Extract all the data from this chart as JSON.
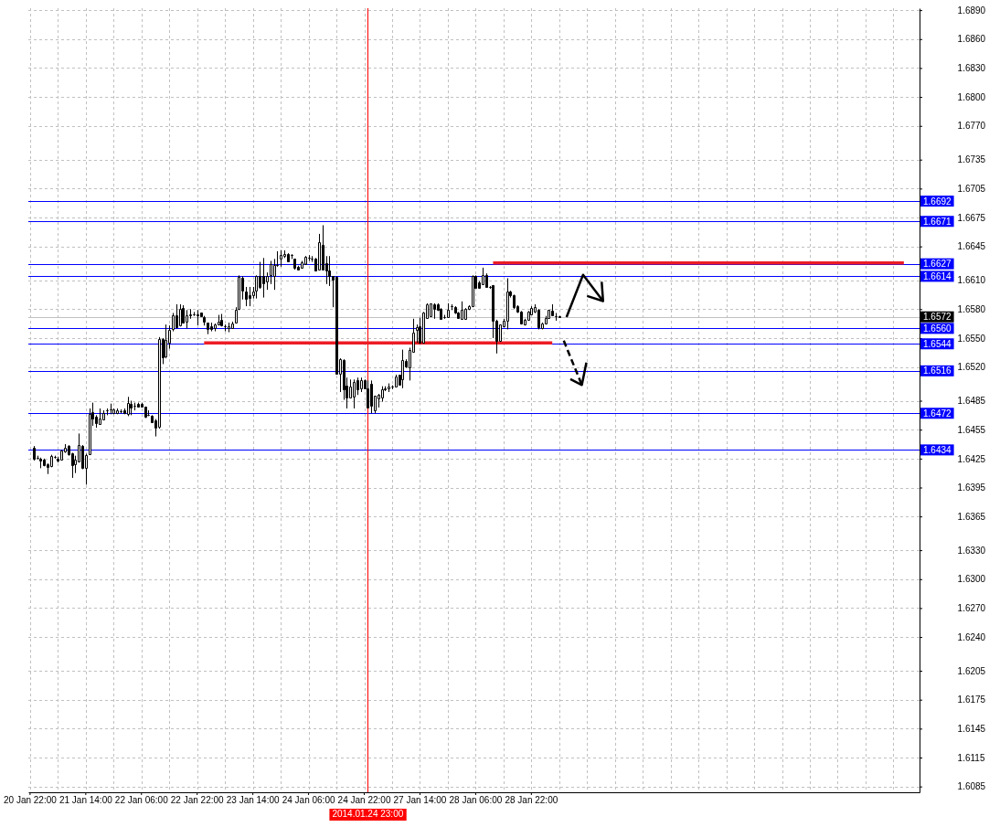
{
  "chart_data": {
    "type": "candlestick",
    "categories": [
      "20 Jan 22:00",
      null,
      null,
      null,
      null,
      null,
      null,
      null,
      null,
      null,
      null,
      null,
      null,
      null,
      null,
      null,
      "21 Jan 14:00",
      null,
      null,
      null,
      null,
      null,
      null,
      null,
      null,
      null,
      null,
      null,
      null,
      null,
      null,
      null,
      "22 Jan 06:00",
      null,
      null,
      null,
      null,
      null,
      null,
      null,
      null,
      null,
      null,
      null,
      null,
      null,
      null,
      null,
      "22 Jan 22:00",
      null,
      null,
      null,
      null,
      null,
      null,
      null,
      null,
      null,
      null,
      null,
      null,
      null,
      null,
      null,
      "23 Jan 14:00",
      null,
      null,
      null,
      null,
      null,
      null,
      null,
      null,
      null,
      null,
      null,
      null,
      null,
      null,
      null,
      "24 Jan 06:00",
      null,
      null,
      null,
      null,
      null,
      null,
      null,
      null,
      null,
      null,
      null,
      null,
      null,
      null,
      null,
      "24 Jan 22:00",
      "2014.01.24 23:00",
      null,
      null,
      null,
      null,
      null,
      null,
      null,
      null,
      null,
      null,
      null,
      null,
      null,
      null,
      "27 Jan 14:00",
      null,
      null,
      null,
      null,
      null,
      null,
      null,
      null,
      null,
      null,
      null,
      null,
      null,
      null,
      null,
      "28 Jan 06:00",
      null,
      null,
      null,
      null,
      null,
      null,
      null,
      null,
      null,
      null,
      null,
      null,
      null,
      null,
      null,
      "28 Jan 22:00",
      null,
      null,
      null,
      null,
      null,
      null,
      null,
      null,
      null,
      null,
      null,
      null,
      null,
      null,
      null,
      null,
      null,
      null,
      null,
      null,
      null,
      null,
      null,
      null,
      null,
      null,
      null,
      null,
      null,
      null,
      null,
      null,
      null,
      null,
      null,
      null,
      null,
      null,
      null,
      null,
      null,
      null,
      null,
      null,
      null,
      null,
      null,
      null,
      null,
      null,
      null,
      null,
      null,
      null,
      null,
      null,
      null,
      null,
      null,
      null,
      null,
      null,
      null,
      null,
      null,
      null,
      null,
      null,
      null,
      null,
      null,
      null,
      null,
      null,
      null,
      null,
      null,
      null,
      null,
      null,
      null,
      null,
      null,
      null,
      null,
      null,
      null,
      null,
      null,
      null,
      null,
      null,
      null,
      null,
      null,
      null,
      null,
      null,
      null,
      null,
      null,
      null,
      null,
      null,
      null,
      null,
      null,
      null,
      null,
      null,
      null
    ],
    "ohlc": [
      null,
      [
        1.6436,
        1.6438,
        1.6423,
        1.6425
      ],
      [
        1.6426,
        1.6428,
        1.6424,
        1.6426
      ],
      [
        1.6425,
        1.6426,
        1.6415,
        1.6423
      ],
      [
        1.6424,
        1.6425,
        1.6417,
        1.6418
      ],
      [
        1.6419,
        1.642,
        1.6409,
        1.6416
      ],
      [
        1.6417,
        1.6429,
        1.6416,
        1.6428
      ],
      [
        1.6427,
        1.6428,
        1.6425,
        1.6427
      ],
      [
        1.6425,
        1.6427,
        1.6421,
        1.6423
      ],
      [
        1.6424,
        1.6434,
        1.6423,
        1.6433
      ],
      [
        1.6432,
        1.644,
        1.6431,
        1.6436
      ],
      [
        1.6438,
        1.6439,
        1.6428,
        1.643
      ],
      [
        1.6431,
        1.6431,
        1.6405,
        1.6418
      ],
      [
        1.6419,
        1.6428,
        1.641,
        1.6424
      ],
      [
        1.6422,
        1.6451,
        1.6421,
        1.6439
      ],
      [
        1.6438,
        1.6439,
        1.6414,
        1.6415
      ],
      [
        1.6415,
        1.643,
        1.6398,
        1.6429
      ],
      [
        1.643,
        1.6477,
        1.6429,
        1.6471
      ],
      [
        1.6473,
        1.6483,
        1.6459,
        1.6467
      ],
      [
        1.6468,
        1.647,
        1.6457,
        1.6462
      ],
      [
        1.6461,
        1.6477,
        1.646,
        1.6467
      ],
      [
        1.6466,
        1.6475,
        1.6465,
        1.6472
      ],
      [
        1.6475,
        1.6477,
        1.647,
        1.6475
      ],
      [
        1.6476,
        1.6482,
        1.6471,
        1.6476
      ],
      [
        1.6472,
        1.6477,
        1.6471,
        1.6476
      ],
      [
        1.6472,
        1.6477,
        1.6471,
        1.6475
      ],
      [
        1.6474,
        1.6476,
        1.6472,
        1.6474
      ],
      [
        1.6475,
        1.6477,
        1.6471,
        1.6472
      ],
      [
        1.6471,
        1.6489,
        1.6469,
        1.6483
      ],
      [
        1.6482,
        1.6485,
        1.647,
        1.6478
      ],
      [
        1.648,
        1.6483,
        1.6475,
        1.648
      ],
      [
        1.6482,
        1.6483,
        1.6478,
        1.6479
      ],
      [
        1.6482,
        1.6483,
        1.6478,
        1.6479
      ],
      [
        1.6479,
        1.6479,
        1.6467,
        1.6468
      ],
      [
        1.647,
        1.6475,
        1.6469,
        1.647
      ],
      [
        1.6469,
        1.647,
        1.6462,
        1.6463
      ],
      [
        1.6465,
        1.6466,
        1.6448,
        1.6457
      ],
      [
        1.6458,
        1.6551,
        1.6456,
        1.6549
      ],
      [
        1.6549,
        1.655,
        1.6523,
        1.653
      ],
      [
        1.6531,
        1.6564,
        1.6529,
        1.6548
      ],
      [
        1.6545,
        1.6563,
        1.6539,
        1.6558
      ],
      [
        1.6559,
        1.6576,
        1.6557,
        1.6574
      ],
      [
        1.6574,
        1.6585,
        1.656,
        1.6561
      ],
      [
        1.6563,
        1.6585,
        1.6562,
        1.658
      ],
      [
        1.6581,
        1.6584,
        1.6565,
        1.6566
      ],
      [
        1.6567,
        1.6579,
        1.656,
        1.6574
      ],
      [
        1.6574,
        1.658,
        1.657,
        1.6575
      ],
      [
        1.6575,
        1.6577,
        1.6573,
        1.6575
      ],
      [
        1.6575,
        1.6579,
        1.6563,
        1.6574
      ],
      [
        1.6576,
        1.6576,
        1.6572,
        1.6573
      ],
      [
        1.6572,
        1.6573,
        1.6563,
        1.6567
      ],
      [
        1.6566,
        1.6566,
        1.6554,
        1.6559
      ],
      [
        1.6562,
        1.6566,
        1.6557,
        1.6559
      ],
      [
        1.656,
        1.6565,
        1.6557,
        1.6564
      ],
      [
        1.6564,
        1.6574,
        1.6563,
        1.6567
      ],
      [
        1.6569,
        1.6575,
        1.6562,
        1.6563
      ],
      [
        1.6562,
        1.6564,
        1.6557,
        1.6562
      ],
      [
        1.656,
        1.6566,
        1.6556,
        1.6562
      ],
      [
        1.656,
        1.6567,
        1.656,
        1.6565
      ],
      [
        1.6566,
        1.6582,
        1.6565,
        1.6579
      ],
      [
        1.658,
        1.6615,
        1.6579,
        1.6613
      ],
      [
        1.6612,
        1.6614,
        1.659,
        1.6599
      ],
      [
        1.6598,
        1.6603,
        1.6583,
        1.6591
      ],
      [
        1.6594,
        1.6603,
        1.6583,
        1.6592
      ],
      [
        1.6594,
        1.6603,
        1.6591,
        1.6598
      ],
      [
        1.6599,
        1.6615,
        1.6591,
        1.6614
      ],
      [
        1.6614,
        1.6629,
        1.6601,
        1.6603
      ],
      [
        1.6614,
        1.6633,
        1.6592,
        1.6607
      ],
      [
        1.6609,
        1.6618,
        1.66,
        1.6614
      ],
      [
        1.6615,
        1.663,
        1.6606,
        1.6627
      ],
      [
        1.6614,
        1.6632,
        1.66,
        1.6626
      ],
      [
        1.6626,
        1.664,
        1.6624,
        1.6626
      ],
      [
        1.6632,
        1.6641,
        1.6624,
        1.6636
      ],
      [
        1.6635,
        1.6641,
        1.6633,
        1.6637
      ],
      [
        1.6637,
        1.6638,
        1.6629,
        1.663
      ],
      [
        1.6636,
        1.6637,
        1.6632,
        1.6636
      ],
      [
        1.6632,
        1.6632,
        1.6621,
        1.6623
      ],
      [
        1.6624,
        1.6625,
        1.6621,
        1.6621
      ],
      [
        1.6623,
        1.663,
        1.6622,
        1.6629
      ],
      [
        1.6627,
        1.6635,
        1.6627,
        1.6634
      ],
      [
        1.6633,
        1.6636,
        1.663,
        1.6633
      ],
      [
        1.6632,
        1.6635,
        1.6629,
        1.6632
      ],
      [
        1.6632,
        1.6633,
        1.6619,
        1.662
      ],
      [
        1.6621,
        1.6658,
        1.6621,
        1.6649
      ],
      [
        1.6647,
        1.6667,
        1.6621,
        1.6621
      ],
      [
        1.6628,
        1.6635,
        1.6606,
        1.662
      ],
      [
        1.662,
        1.6635,
        1.6604,
        1.6614
      ],
      [
        1.6614,
        1.6614,
        1.6582,
        1.6611
      ],
      [
        1.6613,
        1.6614,
        1.6512,
        1.6513
      ],
      [
        1.6513,
        1.6529,
        1.6494,
        1.6528
      ],
      [
        1.6527,
        1.6528,
        1.6486,
        1.6497
      ],
      [
        1.6501,
        1.6509,
        1.6477,
        1.6488
      ],
      [
        1.6488,
        1.6507,
        1.6488,
        1.65
      ],
      [
        1.6489,
        1.6507,
        1.6477,
        1.6504
      ],
      [
        1.6506,
        1.6509,
        1.6491,
        1.6497
      ],
      [
        1.6498,
        1.6509,
        1.6494,
        1.6506
      ],
      [
        1.6506,
        1.6507,
        1.6497,
        1.6498
      ],
      [
        1.6498,
        1.6506,
        1.6477,
        1.6478
      ],
      [
        1.6503,
        1.6506,
        1.6472,
        1.648
      ],
      [
        1.6475,
        1.649,
        1.6472,
        1.649
      ],
      [
        1.6487,
        1.6492,
        1.6478,
        1.6491
      ],
      [
        1.6488,
        1.65,
        1.6484,
        1.6497
      ],
      [
        1.6497,
        1.65,
        1.6495,
        1.6498
      ],
      [
        1.6498,
        1.6503,
        1.6494,
        1.65
      ],
      [
        1.65,
        1.6501,
        1.6497,
        1.65
      ],
      [
        1.65,
        1.6512,
        1.6499,
        1.651
      ],
      [
        1.6512,
        1.6512,
        1.6501,
        1.6502
      ],
      [
        1.6507,
        1.6538,
        1.6498,
        1.6527
      ],
      [
        1.6526,
        1.6528,
        1.6519,
        1.6521
      ],
      [
        1.652,
        1.654,
        1.6506,
        1.6538
      ],
      [
        1.6536,
        1.657,
        1.6535,
        1.6556
      ],
      [
        1.6558,
        1.6564,
        1.6545,
        1.6561
      ],
      [
        1.6562,
        1.6571,
        1.6545,
        1.6545
      ],
      [
        1.6545,
        1.6577,
        1.6545,
        1.6576
      ],
      [
        1.6571,
        1.6586,
        1.657,
        1.6585
      ],
      [
        1.6573,
        1.6586,
        1.6572,
        1.6586
      ],
      [
        1.6585,
        1.6586,
        1.657,
        1.658
      ],
      [
        1.6585,
        1.6586,
        1.6578,
        1.6579
      ],
      [
        1.658,
        1.6581,
        1.6569,
        1.657
      ],
      [
        1.6572,
        1.6574,
        1.657,
        1.6572
      ],
      [
        1.6572,
        1.6586,
        1.6571,
        1.6579
      ],
      [
        1.6583,
        1.6585,
        1.6579,
        1.6583
      ],
      [
        1.6582,
        1.6583,
        1.6575,
        1.6576
      ],
      [
        1.6576,
        1.6577,
        1.657,
        1.6571
      ],
      [
        1.657,
        1.6588,
        1.6569,
        1.6579
      ],
      [
        1.657,
        1.6581,
        1.6569,
        1.658
      ],
      [
        1.658,
        1.6584,
        1.6579,
        1.6583
      ],
      [
        1.6583,
        1.6615,
        1.6582,
        1.6614
      ],
      [
        1.6614,
        1.6615,
        1.6601,
        1.6602
      ],
      [
        1.6608,
        1.6609,
        1.6601,
        1.6602
      ],
      [
        1.6606,
        1.6623,
        1.6605,
        1.6615
      ],
      [
        1.6615,
        1.6617,
        1.6602,
        1.6603
      ],
      [
        1.6603,
        1.6604,
        1.6601,
        1.6603
      ],
      [
        1.6605,
        1.6605,
        1.655,
        1.6568
      ],
      [
        1.6568,
        1.6569,
        1.6534,
        1.6547
      ],
      [
        1.6547,
        1.6564,
        1.6546,
        1.6564
      ],
      [
        1.6562,
        1.657,
        1.6561,
        1.6568
      ],
      [
        1.6568,
        1.6612,
        1.6559,
        1.6598
      ],
      [
        1.6598,
        1.6599,
        1.6592,
        1.6594
      ],
      [
        1.6594,
        1.6595,
        1.658,
        1.6582
      ],
      [
        1.6583,
        1.6584,
        1.6576,
        1.6577
      ],
      [
        1.6577,
        1.6578,
        1.6564,
        1.6565
      ],
      [
        1.6564,
        1.657,
        1.6563,
        1.6569
      ],
      [
        1.6569,
        1.6578,
        1.6568,
        1.6577
      ],
      [
        1.6575,
        1.6583,
        1.6574,
        1.6581
      ],
      [
        1.6577,
        1.6585,
        1.6576,
        1.6582
      ],
      [
        1.6579,
        1.658,
        1.6559,
        1.6561
      ],
      [
        1.656,
        1.6566,
        1.6559,
        1.6565
      ],
      [
        1.6565,
        1.6573,
        1.6564,
        1.6571
      ],
      [
        1.6571,
        1.6579,
        1.657,
        1.6579
      ],
      [
        1.6578,
        1.6585,
        1.6573,
        1.6574
      ],
      [
        1.6573,
        1.6576,
        1.6568,
        1.6573
      ],
      [
        1.6573,
        1.6573,
        1.6571,
        1.6572
      ],
      null,
      null,
      null,
      null,
      null,
      null,
      null,
      null,
      null,
      null,
      null,
      null,
      null,
      null,
      null,
      null,
      null,
      null,
      null,
      null,
      null,
      null,
      null,
      null,
      null,
      null,
      null,
      null,
      null,
      null,
      null,
      null,
      null,
      null,
      null,
      null,
      null,
      null,
      null,
      null,
      null,
      null,
      null,
      null,
      null,
      null,
      null,
      null,
      null,
      null,
      null,
      null,
      null,
      null,
      null,
      null,
      null,
      null,
      null,
      null,
      null,
      null,
      null,
      null,
      null,
      null,
      null,
      null,
      null,
      null,
      null,
      null,
      null,
      null,
      null,
      null,
      null,
      null,
      null,
      null,
      null,
      null,
      null,
      null,
      null,
      null,
      null,
      null,
      null,
      null,
      null,
      null,
      null,
      null,
      null,
      null,
      null,
      null,
      null,
      null,
      null,
      null,
      null
    ],
    "series": [
      {
        "type": "line",
        "color": "#ed1c24",
        "values": [
          null,
          null,
          null,
          null,
          null,
          null,
          null,
          null,
          null,
          null,
          null,
          null,
          null,
          null,
          null,
          null,
          null,
          null,
          null,
          null,
          null,
          null,
          null,
          null,
          null,
          null,
          null,
          null,
          null,
          null,
          null,
          null,
          null,
          null,
          null,
          null,
          null,
          null,
          null,
          null,
          null,
          null,
          null,
          null,
          null,
          null,
          null,
          null,
          null,
          null,
          null,
          null,
          null,
          null,
          null,
          null,
          null,
          null,
          null,
          null,
          null,
          null,
          null,
          null,
          null,
          null,
          null,
          null,
          null,
          null,
          null,
          null,
          null,
          null,
          null,
          null,
          null,
          null,
          null,
          null,
          null,
          null,
          null,
          null,
          null,
          null,
          null,
          null,
          null,
          null,
          null,
          null,
          null,
          null,
          null,
          null,
          null,
          null,
          null,
          null,
          null,
          null,
          null,
          null,
          null,
          null,
          null,
          null,
          null,
          null,
          null,
          null,
          null,
          null,
          null,
          null,
          null,
          null,
          null,
          null,
          null,
          null,
          null,
          null,
          null,
          null,
          null,
          null,
          null,
          null,
          null,
          null,
          null,
          1.6627,
          1.6627,
          1.6627,
          1.6627,
          1.6627,
          1.6627,
          1.6627,
          1.6627,
          1.6627,
          1.6627,
          1.6627,
          1.6627,
          1.6627,
          1.6627,
          1.6627,
          1.6627,
          1.6627,
          1.6627,
          1.6627,
          1.6627,
          1.6627,
          1.6627,
          1.6627,
          1.6627,
          1.6627,
          1.6627,
          1.6627,
          1.6627,
          1.6627,
          1.6627,
          1.6627,
          1.6627,
          1.6627,
          1.6627,
          1.6627,
          1.6627,
          1.6627,
          1.6627,
          1.6627,
          1.6627,
          1.6627,
          1.6627,
          1.6627,
          1.6627,
          1.6627,
          1.6627,
          1.6627,
          1.6627,
          1.6627,
          1.6627,
          1.6627,
          1.6627,
          1.6627,
          1.6627,
          1.6627,
          1.6627,
          1.6627,
          1.6627,
          1.6627,
          1.6627,
          1.6627,
          1.6627,
          1.6627,
          1.6627,
          1.6627,
          1.6627,
          1.6627,
          1.6627,
          1.6627,
          1.6627,
          1.6627,
          1.6627,
          1.6627,
          1.6627,
          1.6627,
          1.6627,
          1.6627,
          1.6627,
          1.6627,
          1.6627,
          1.6627,
          1.6627,
          1.6627,
          1.6627,
          1.6627,
          1.6627,
          1.6627,
          1.6627,
          1.6627,
          1.6627,
          1.6627,
          1.6627,
          1.6627,
          1.6627,
          1.6627,
          1.6627,
          1.6627,
          1.6627,
          1.6627,
          1.6627,
          1.6627,
          1.6627,
          1.6627,
          1.6627,
          1.6627,
          1.6627,
          1.6627,
          1.6627,
          1.6627,
          1.6627,
          1.6627,
          1.6627,
          1.6627,
          1.6627,
          1.6627,
          1.6627,
          1.6627,
          1.6627,
          1.6627,
          null,
          null,
          null,
          null
        ]
      },
      {
        "type": "line",
        "color": "#ed1c24",
        "values": [
          null,
          null,
          null,
          null,
          null,
          null,
          null,
          null,
          null,
          null,
          null,
          null,
          null,
          null,
          null,
          null,
          null,
          null,
          null,
          null,
          null,
          null,
          null,
          null,
          null,
          null,
          null,
          null,
          null,
          null,
          null,
          null,
          null,
          null,
          null,
          null,
          null,
          null,
          null,
          null,
          null,
          null,
          null,
          null,
          null,
          null,
          null,
          null,
          null,
          null,
          1.6544,
          1.6544,
          1.6544,
          1.6544,
          1.6544,
          1.6544,
          1.6544,
          1.6544,
          1.6544,
          1.6544,
          1.6544,
          1.6544,
          1.6544,
          1.6544,
          1.6544,
          1.6544,
          1.6544,
          1.6544,
          1.6544,
          1.6544,
          1.6544,
          1.6544,
          1.6544,
          1.6544,
          1.6544,
          1.6544,
          1.6544,
          1.6544,
          1.6544,
          1.6544,
          1.6544,
          1.6544,
          1.6544,
          1.6544,
          1.6544,
          1.6544,
          1.6544,
          1.6544,
          1.6544,
          1.6544,
          1.6544,
          1.6544,
          1.6544,
          1.6544,
          1.6544,
          1.6544,
          1.6544,
          1.6544,
          1.6544,
          1.6544,
          1.6544,
          1.6544,
          1.6544,
          1.6544,
          1.6544,
          1.6544,
          1.6544,
          1.6544,
          1.6544,
          1.6544,
          1.6544,
          1.6544,
          1.6544,
          1.6544,
          1.6544,
          1.6544,
          1.6544,
          1.6544,
          1.6544,
          1.6544,
          1.6544,
          1.6544,
          1.6544,
          1.6544,
          1.6544,
          1.6544,
          1.6544,
          1.6544,
          1.6544,
          1.6544,
          1.6544,
          1.6544,
          1.6544,
          1.6544,
          1.6544,
          1.6544,
          1.6544,
          1.6544,
          1.6544,
          1.6544,
          1.6544,
          1.6544,
          1.6544,
          1.6544,
          1.6544,
          1.6544,
          1.6544,
          1.6544,
          1.6544,
          1.6544,
          1.6544,
          null,
          null,
          null,
          null,
          null,
          null,
          null,
          null,
          null,
          null,
          null,
          null,
          null,
          null,
          null,
          null,
          null,
          null,
          null,
          null,
          null,
          null,
          null,
          null,
          null,
          null,
          null,
          null,
          null,
          null,
          null,
          null,
          null,
          null,
          null,
          null,
          null,
          null,
          null,
          null,
          null,
          null,
          null,
          null,
          null,
          null,
          null,
          null,
          null,
          null,
          null,
          null,
          null,
          null,
          null,
          null,
          null,
          null,
          null,
          null,
          null,
          null,
          null,
          null,
          null,
          null,
          null,
          null,
          null,
          null,
          null,
          null,
          null,
          null,
          null,
          null,
          null,
          null,
          null,
          null,
          null,
          null,
          null,
          null,
          null,
          null,
          null,
          null,
          null,
          null,
          null,
          null,
          null,
          null,
          null,
          null,
          null,
          null,
          null,
          null,
          null,
          null,
          null,
          null,
          null
        ]
      }
    ],
    "ylim": [
      1.6079,
      1.6892
    ],
    "yticks": [
      {
        "value": 1.689,
        "label": "1.6890"
      },
      {
        "value": 1.686,
        "label": "1.6860"
      },
      {
        "value": 1.683,
        "label": "1.6830"
      },
      {
        "value": 1.68,
        "label": "1.6800"
      },
      {
        "value": 1.677,
        "label": "1.6770"
      },
      1.6735,
      1.6705,
      1.6675,
      1.6645,
      {
        "value": 1.661,
        "label": "1.6610"
      },
      {
        "value": 1.658,
        "label": "1.6580"
      },
      {
        "value": 1.655,
        "label": "1.6550"
      },
      {
        "value": 1.652,
        "label": "1.6520"
      },
      1.6485,
      1.6455,
      1.6425,
      1.6395,
      1.6365,
      {
        "value": 1.633,
        "label": "1.6330"
      },
      {
        "value": 1.63,
        "label": "1.6300"
      },
      {
        "value": 1.627,
        "label": "1.6270"
      },
      {
        "value": 1.624,
        "label": "1.6240"
      },
      1.6205,
      1.6175,
      1.6145,
      1.6115,
      1.6085
    ],
    "grid": true,
    "ref_lines": [
      {
        "axis": "y",
        "value": 1.6692,
        "label": "1.6692",
        "color": "#0000ff"
      },
      {
        "axis": "y",
        "value": 1.6671,
        "label": "1.6671",
        "color": "#0000ff"
      },
      {
        "axis": "y",
        "value": 1.6627,
        "label": "1.6627",
        "color": "#0000ff"
      },
      {
        "axis": "y",
        "value": 1.6614,
        "label": "1.6614",
        "color": "#0000ff"
      },
      {
        "axis": "y",
        "value": 1.6572,
        "label": "1.6572",
        "color": "#c0c0c0"
      },
      {
        "axis": "y",
        "value": 1.656,
        "label": "1.6560",
        "color": "#0000ff"
      },
      {
        "axis": "y",
        "value": 1.6544,
        "label": "1.6544",
        "color": "#0000ff"
      },
      {
        "axis": "y",
        "value": 1.6516,
        "label": "1.6516",
        "color": "#0000ff"
      },
      {
        "axis": "y",
        "value": 1.6472,
        "label": "1.6472",
        "color": "#0000ff"
      },
      {
        "axis": "y",
        "value": 1.6434,
        "label": "1.6434",
        "color": "#0000ff"
      },
      {
        "axis": "x",
        "value": "2014.01.24 23:00",
        "color": "#ff0000"
      }
    ]
  }
}
